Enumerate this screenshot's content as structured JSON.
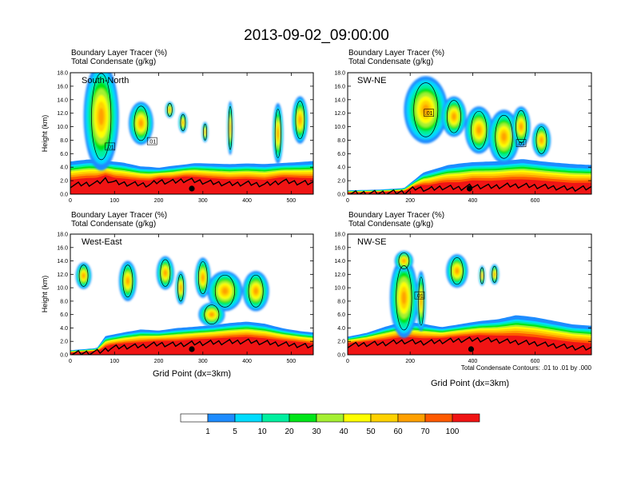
{
  "title": "2013-09-02_09:00:00",
  "colors": {
    "levels": [
      "#ffffff",
      "#1e8cff",
      "#00dcff",
      "#00f0a0",
      "#00e619",
      "#a5f032",
      "#ffff00",
      "#ffd200",
      "#ffa000",
      "#ff5a00",
      "#f01414"
    ],
    "contour": "#000000",
    "terrain": "#000000"
  },
  "chart_data": [
    {
      "type": "heatmap",
      "panel": "South-North",
      "label": "South-North",
      "subtitle_left": "Boundary Layer Tracer   (%)",
      "subtitle_left2": "Total Condensate   (g/kg)",
      "ylabel": "Height (km)",
      "xlabel": "",
      "xlim": [
        0,
        550
      ],
      "ylim": [
        0,
        18
      ],
      "xticks": [
        0,
        100,
        200,
        300,
        400,
        500
      ],
      "yticks": [
        "0.0",
        "2.0",
        "4.0",
        "6.0",
        "8.0",
        "10.0",
        "12.0",
        "14.0",
        "16.0",
        "18.0"
      ],
      "marker_x": 275,
      "contour_labels": [
        {
          "x": 90,
          "y": 7.0,
          "text": ".01"
        },
        {
          "x": 185,
          "y": 7.8,
          "text": ".01"
        }
      ],
      "pbl_top": [
        [
          0,
          4.3
        ],
        [
          40,
          4.6
        ],
        [
          80,
          4.5
        ],
        [
          120,
          4.2
        ],
        [
          160,
          3.7
        ],
        [
          200,
          3.6
        ],
        [
          240,
          3.9
        ],
        [
          280,
          4.2
        ],
        [
          320,
          4.1
        ],
        [
          360,
          4.0
        ],
        [
          400,
          4.1
        ],
        [
          440,
          4.0
        ],
        [
          480,
          4.2
        ],
        [
          520,
          4.3
        ],
        [
          550,
          4.4
        ]
      ],
      "terrain": [
        [
          0,
          1.3
        ],
        [
          30,
          1.5
        ],
        [
          60,
          1.6
        ],
        [
          80,
          2.2
        ],
        [
          100,
          1.7
        ],
        [
          140,
          1.5
        ],
        [
          180,
          1.4
        ],
        [
          200,
          1.9
        ],
        [
          230,
          1.8
        ],
        [
          260,
          2.1
        ],
        [
          290,
          1.9
        ],
        [
          320,
          1.7
        ],
        [
          360,
          1.5
        ],
        [
          400,
          1.6
        ],
        [
          440,
          1.4
        ],
        [
          480,
          1.9
        ],
        [
          520,
          1.7
        ],
        [
          550,
          1.6
        ]
      ],
      "clouds": [
        [
          70,
          11.5,
          40,
          8.0
        ],
        [
          160,
          10.5,
          28,
          3.2
        ],
        [
          225,
          12.5,
          10,
          1.2
        ],
        [
          255,
          10.6,
          10,
          1.5
        ],
        [
          305,
          9.2,
          7,
          1.5
        ],
        [
          362,
          9.8,
          7,
          4.0
        ],
        [
          470,
          9.0,
          12,
          4.5
        ],
        [
          520,
          11.0,
          18,
          3.5
        ]
      ]
    },
    {
      "type": "heatmap",
      "panel": "SW-NE",
      "label": "SW-NE",
      "subtitle_left": "Boundary Layer Tracer   (%)",
      "subtitle_left2": "Total Condensate   (g/kg)",
      "ylabel": "",
      "xlabel": "",
      "xlim": [
        0,
        780
      ],
      "ylim": [
        0,
        18
      ],
      "xticks": [
        0,
        200,
        400,
        600
      ],
      "yticks": [
        "0.0",
        "2.0",
        "4.0",
        "6.0",
        "8.0",
        "10.0",
        "12.0",
        "14.0",
        "16.0",
        "18.0"
      ],
      "marker_x": 390,
      "contour_labels": [
        {
          "x": 260,
          "y": 12.0,
          "text": ".01"
        },
        {
          "x": 555,
          "y": 7.5,
          "text": ".01"
        }
      ],
      "pbl_top": [
        [
          0,
          0.5
        ],
        [
          100,
          0.6
        ],
        [
          180,
          0.8
        ],
        [
          240,
          2.8
        ],
        [
          320,
          3.8
        ],
        [
          400,
          4.2
        ],
        [
          480,
          4.3
        ],
        [
          560,
          4.6
        ],
        [
          640,
          4.2
        ],
        [
          720,
          3.9
        ],
        [
          780,
          3.8
        ]
      ],
      "terrain": [
        [
          0,
          0.1
        ],
        [
          100,
          0.2
        ],
        [
          180,
          0.3
        ],
        [
          220,
          0.9
        ],
        [
          260,
          0.7
        ],
        [
          300,
          1.0
        ],
        [
          360,
          0.9
        ],
        [
          400,
          1.2
        ],
        [
          460,
          1.1
        ],
        [
          520,
          1.3
        ],
        [
          600,
          1.2
        ],
        [
          660,
          1.0
        ],
        [
          720,
          0.8
        ],
        [
          780,
          0.9
        ]
      ],
      "clouds": [
        [
          250,
          12.5,
          70,
          5.0
        ],
        [
          340,
          11.5,
          40,
          3.0
        ],
        [
          420,
          9.5,
          45,
          3.5
        ],
        [
          500,
          8.5,
          50,
          4.0
        ],
        [
          555,
          10.0,
          30,
          3.0
        ],
        [
          620,
          8.0,
          30,
          2.5
        ]
      ]
    },
    {
      "type": "heatmap",
      "panel": "West-East",
      "label": "West-East",
      "subtitle_left": "Boundary Layer Tracer   (%)",
      "subtitle_left2": "Total Condensate   (g/kg)",
      "ylabel": "Height (km)",
      "xlabel": "Grid Point (dx=3km)",
      "xlim": [
        0,
        550
      ],
      "ylim": [
        0,
        18
      ],
      "xticks": [
        0,
        100,
        200,
        300,
        400,
        500
      ],
      "yticks": [
        "0.0",
        "2.0",
        "4.0",
        "6.0",
        "8.0",
        "10.0",
        "12.0",
        "14.0",
        "16.0",
        "18.0"
      ],
      "marker_x": 275,
      "contour_labels": [],
      "pbl_top": [
        [
          0,
          0.6
        ],
        [
          60,
          0.9
        ],
        [
          80,
          2.5
        ],
        [
          120,
          3.0
        ],
        [
          160,
          3.4
        ],
        [
          200,
          3.3
        ],
        [
          240,
          3.6
        ],
        [
          280,
          3.8
        ],
        [
          320,
          4.0
        ],
        [
          360,
          4.3
        ],
        [
          400,
          4.5
        ],
        [
          440,
          4.2
        ],
        [
          480,
          3.6
        ],
        [
          520,
          3.2
        ],
        [
          550,
          3.0
        ]
      ],
      "terrain": [
        [
          0,
          0.2
        ],
        [
          40,
          0.3
        ],
        [
          70,
          0.5
        ],
        [
          90,
          1.0
        ],
        [
          120,
          1.2
        ],
        [
          160,
          1.3
        ],
        [
          200,
          1.6
        ],
        [
          240,
          1.5
        ],
        [
          280,
          1.7
        ],
        [
          320,
          1.8
        ],
        [
          360,
          1.9
        ],
        [
          400,
          2.0
        ],
        [
          440,
          1.8
        ],
        [
          480,
          1.6
        ],
        [
          520,
          1.4
        ],
        [
          550,
          1.2
        ]
      ],
      "clouds": [
        [
          30,
          11.8,
          18,
          2.0
        ],
        [
          130,
          11.0,
          20,
          3.0
        ],
        [
          215,
          12.2,
          20,
          2.5
        ],
        [
          250,
          10.0,
          12,
          2.5
        ],
        [
          300,
          11.5,
          18,
          3.0
        ],
        [
          350,
          9.5,
          40,
          3.0
        ],
        [
          420,
          9.5,
          30,
          3.0
        ],
        [
          320,
          6.0,
          30,
          1.8
        ]
      ]
    },
    {
      "type": "heatmap",
      "panel": "NW-SE",
      "label": "NW-SE",
      "subtitle_left": "Boundary Layer Tracer   (%)",
      "subtitle_left2": "Total Condensate   (g/kg)",
      "ylabel": "",
      "xlabel": "Grid Point (dx=3km)",
      "xlim": [
        0,
        780
      ],
      "ylim": [
        0,
        18
      ],
      "xticks": [
        0,
        200,
        400,
        600
      ],
      "yticks": [
        "0.0",
        "2.0",
        "4.0",
        "6.0",
        "8.0",
        "10.0",
        "12.0",
        "14.0",
        "16.0",
        "18.0"
      ],
      "marker_x": 395,
      "contour_labels": [
        {
          "x": 230,
          "y": 8.8,
          "text": ".01"
        }
      ],
      "pbl_top": [
        [
          0,
          2.5
        ],
        [
          60,
          3.0
        ],
        [
          120,
          3.8
        ],
        [
          180,
          4.5
        ],
        [
          240,
          4.2
        ],
        [
          300,
          3.8
        ],
        [
          360,
          4.2
        ],
        [
          420,
          4.6
        ],
        [
          480,
          4.8
        ],
        [
          540,
          5.3
        ],
        [
          600,
          5.0
        ],
        [
          660,
          4.5
        ],
        [
          720,
          4.0
        ],
        [
          780,
          3.8
        ]
      ],
      "terrain": [
        [
          0,
          1.4
        ],
        [
          60,
          1.6
        ],
        [
          120,
          1.7
        ],
        [
          180,
          2.0
        ],
        [
          240,
          1.8
        ],
        [
          300,
          2.0
        ],
        [
          360,
          2.2
        ],
        [
          420,
          2.3
        ],
        [
          480,
          2.1
        ],
        [
          540,
          1.9
        ],
        [
          600,
          1.7
        ],
        [
          660,
          1.4
        ],
        [
          720,
          1.1
        ],
        [
          780,
          0.9
        ]
      ],
      "clouds": [
        [
          180,
          8.5,
          45,
          6.0
        ],
        [
          235,
          8.0,
          15,
          4.5
        ],
        [
          350,
          12.5,
          35,
          2.5
        ],
        [
          430,
          11.8,
          10,
          1.5
        ],
        [
          470,
          12.0,
          14,
          1.5
        ],
        [
          180,
          14.0,
          30,
          1.5
        ]
      ]
    }
  ],
  "colorbar": {
    "labels": [
      "1",
      "5",
      "10",
      "20",
      "30",
      "40",
      "50",
      "60",
      "70",
      "100"
    ]
  },
  "contour_note": "Total Condensate Contours: .01 to .01 by .000"
}
